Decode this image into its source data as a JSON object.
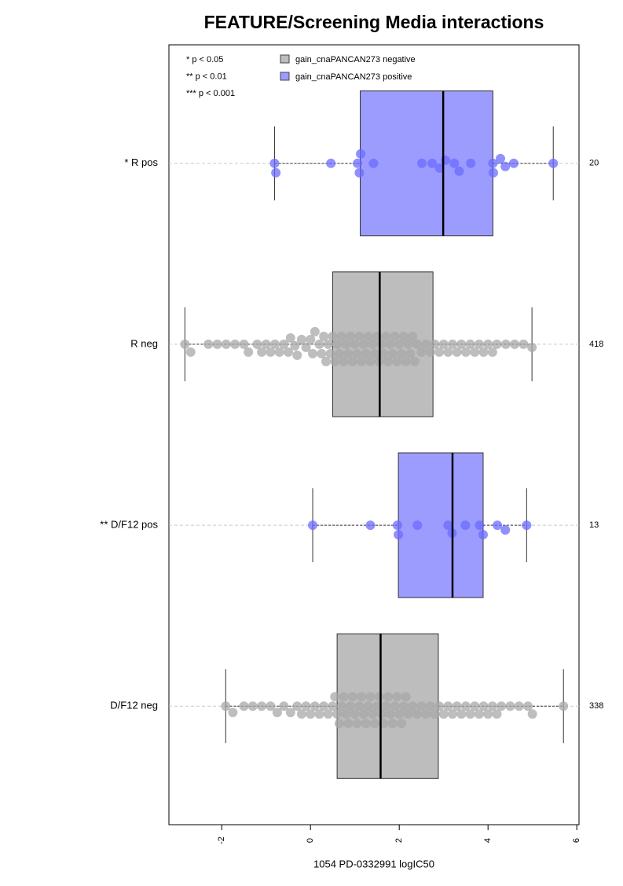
{
  "chart_data": {
    "type": "box",
    "orientation": "horizontal",
    "title": "FEATURE/Screening Media interactions",
    "x_label": "1054 PD-0332991 logIC50",
    "xlim": [
      -3.19,
      6.05
    ],
    "xticks": [
      -2,
      0,
      2,
      4,
      6
    ],
    "significance_legend": [
      "* p < 0.05",
      "** p < 0.01",
      "*** p < 0.001"
    ],
    "legend": [
      {
        "name": "gain_cnaPANCAN273 negative",
        "color": "#bdbdbd"
      },
      {
        "name": "gain_cnaPANCAN273 positive",
        "color": "#9c9cff"
      }
    ],
    "groups": [
      {
        "label": "* R pos",
        "color": "#9c9cff",
        "point_color": "#6b6bff",
        "n": 20,
        "whisker_low": -0.81,
        "q1": 1.12,
        "median": 2.99,
        "q3": 4.11,
        "whisker_high": 5.47,
        "points": [
          -0.81,
          -0.78,
          0.46,
          1.06,
          1.1,
          1.13,
          1.42,
          2.51,
          2.74,
          2.91,
          3.04,
          3.24,
          3.35,
          3.61,
          4.11,
          4.12,
          4.28,
          4.39,
          4.58,
          5.47
        ]
      },
      {
        "label": "R neg",
        "color": "#bdbdbd",
        "point_color": "#a8a8a8",
        "n": 418,
        "whisker_low": -2.83,
        "q1": 0.5,
        "median": 1.56,
        "q3": 2.76,
        "whisker_high": 4.99,
        "points": [
          -2.83,
          -2.7,
          -2.3,
          -2.1,
          -1.9,
          -1.7,
          -1.5,
          -1.4,
          -1.2,
          -1.1,
          -1.0,
          -0.9,
          -0.8,
          -0.7,
          -0.6,
          -0.5,
          -0.45,
          -0.35,
          -0.3,
          -0.2,
          -0.1,
          0,
          0.05,
          0.1,
          0.2,
          0.25,
          0.3,
          0.35,
          0.4,
          0.45,
          0.5,
          0.55,
          0.6,
          0.65,
          0.7,
          0.75,
          0.8,
          0.85,
          0.9,
          0.95,
          1.0,
          1.05,
          1.1,
          1.15,
          1.2,
          1.25,
          1.3,
          1.35,
          1.4,
          1.45,
          1.5,
          1.55,
          1.6,
          1.65,
          1.7,
          1.75,
          1.8,
          1.85,
          1.9,
          1.95,
          2.0,
          2.05,
          2.1,
          2.15,
          2.2,
          2.25,
          2.3,
          2.35,
          2.4,
          2.5,
          2.6,
          2.7,
          2.8,
          2.9,
          3.0,
          3.1,
          3.2,
          3.3,
          3.4,
          3.5,
          3.6,
          3.7,
          3.8,
          3.9,
          4.0,
          4.1,
          4.2,
          4.4,
          4.6,
          4.8,
          4.99
        ]
      },
      {
        "label": "** D/F12 pos",
        "color": "#9c9cff",
        "point_color": "#6b6bff",
        "n": 13,
        "whisker_low": 0.05,
        "q1": 1.98,
        "median": 3.2,
        "q3": 3.89,
        "whisker_high": 4.87,
        "points": [
          0.05,
          1.35,
          1.96,
          1.98,
          2.41,
          3.1,
          3.19,
          3.49,
          3.81,
          3.89,
          4.21,
          4.39,
          4.87
        ]
      },
      {
        "label": "D/F12 neg",
        "color": "#bdbdbd",
        "point_color": "#a8a8a8",
        "n": 338,
        "whisker_low": -1.91,
        "q1": 0.6,
        "median": 1.58,
        "q3": 2.88,
        "whisker_high": 5.7,
        "points": [
          -1.91,
          -1.75,
          -1.5,
          -1.3,
          -1.1,
          -0.9,
          -0.75,
          -0.6,
          -0.45,
          -0.3,
          -0.2,
          -0.1,
          0,
          0.1,
          0.2,
          0.3,
          0.4,
          0.5,
          0.55,
          0.6,
          0.65,
          0.7,
          0.75,
          0.8,
          0.85,
          0.9,
          0.95,
          1.0,
          1.05,
          1.1,
          1.15,
          1.2,
          1.25,
          1.3,
          1.35,
          1.4,
          1.45,
          1.5,
          1.55,
          1.6,
          1.65,
          1.7,
          1.75,
          1.8,
          1.85,
          1.9,
          1.95,
          2.0,
          2.05,
          2.1,
          2.15,
          2.2,
          2.3,
          2.4,
          2.5,
          2.6,
          2.7,
          2.8,
          2.9,
          3.0,
          3.1,
          3.2,
          3.3,
          3.4,
          3.5,
          3.6,
          3.7,
          3.8,
          3.9,
          4.0,
          4.1,
          4.2,
          4.3,
          4.5,
          4.7,
          4.9,
          5.0,
          5.7
        ]
      }
    ]
  }
}
